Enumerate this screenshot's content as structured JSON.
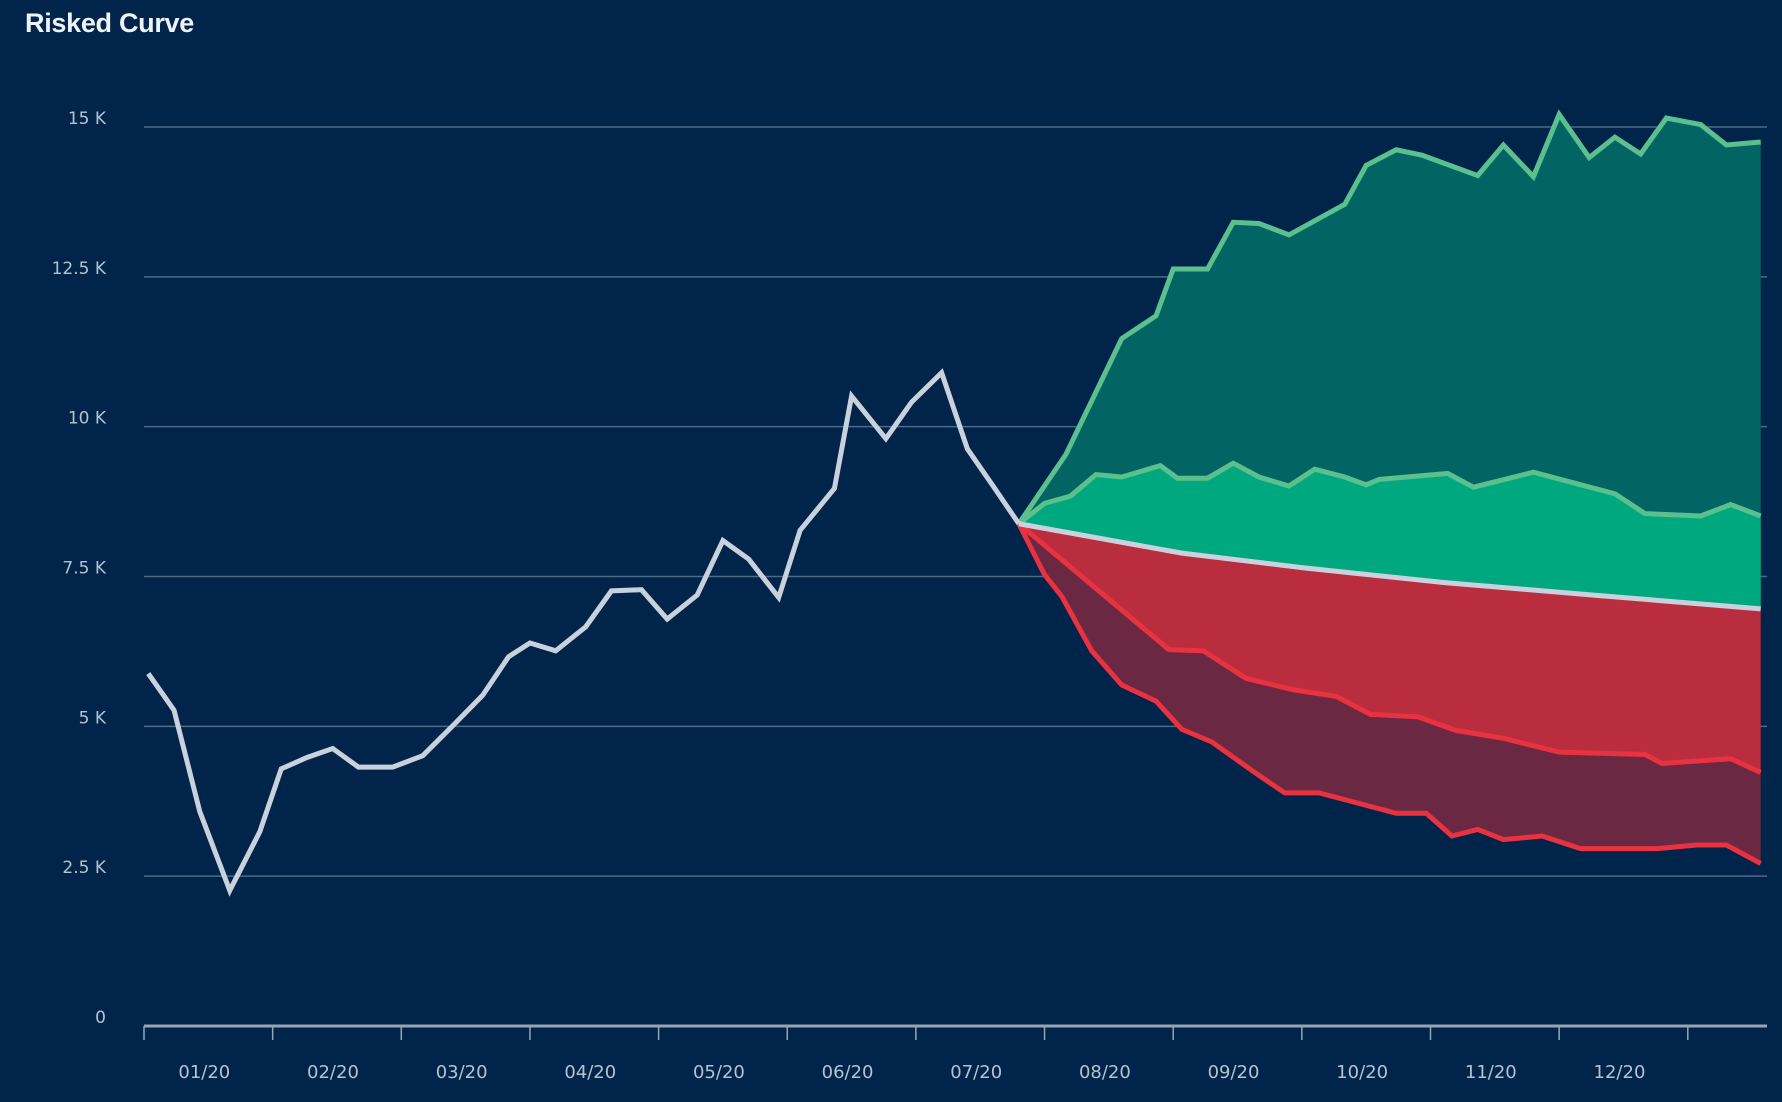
{
  "chart_data": {
    "type": "area",
    "title": "Risked Curve",
    "xlabel": "",
    "ylabel": "",
    "x_tick_labels": [
      "01/20",
      "02/20",
      "03/20",
      "04/20",
      "05/20",
      "06/20",
      "07/20",
      "08/20",
      "09/20",
      "10/20",
      "11/20",
      "12/20"
    ],
    "y_tick_labels": [
      "0",
      "2.5 K",
      "5 K",
      "7.5 K",
      "10 K",
      "12.5 K",
      "15 K"
    ],
    "y_ticks": [
      0,
      2500,
      5000,
      7500,
      10000,
      12500,
      15000
    ],
    "ylim": [
      0,
      15000
    ],
    "xlim": [
      "2020-01-01",
      "2021-01-19"
    ],
    "grid": "horizontal",
    "legend": "none",
    "colors": {
      "background": "#00244a",
      "grid": "#4d6a88",
      "axis": "#9aa5b4",
      "history_line": "#c9d1dc",
      "green_line": "#5cbf8e",
      "red_line": "#e8323f",
      "upper_band_fill": "#026563",
      "mid_band_fill": "#00a880",
      "lower_band_fill": "#b92d3f",
      "lowest_band_fill": "#6a2843"
    },
    "series": [
      {
        "role": "history",
        "points": [
          [
            "2020-01-02",
            5880
          ],
          [
            "2020-01-08",
            5270
          ],
          [
            "2020-01-14",
            3580
          ],
          [
            "2020-01-21",
            2260
          ],
          [
            "2020-01-28",
            3240
          ],
          [
            "2020-02-03",
            4290
          ],
          [
            "2020-02-09",
            4480
          ],
          [
            "2020-02-15",
            4630
          ],
          [
            "2020-02-21",
            4320
          ],
          [
            "2020-02-29",
            4320
          ],
          [
            "2020-03-06",
            4510
          ],
          [
            "2020-03-13",
            5010
          ],
          [
            "2020-03-20",
            5520
          ],
          [
            "2020-03-26",
            6160
          ],
          [
            "2020-03-31",
            6390
          ],
          [
            "2020-04-07",
            6260
          ],
          [
            "2020-04-14",
            6660
          ],
          [
            "2020-04-20",
            7260
          ],
          [
            "2020-04-27",
            7280
          ],
          [
            "2020-05-03",
            6790
          ],
          [
            "2020-05-10",
            7190
          ],
          [
            "2020-05-16",
            8100
          ],
          [
            "2020-05-22",
            7790
          ],
          [
            "2020-05-29",
            7150
          ],
          [
            "2020-06-04",
            8270
          ],
          [
            "2020-06-12",
            8970
          ],
          [
            "2020-06-16",
            10510
          ],
          [
            "2020-06-24",
            9800
          ],
          [
            "2020-06-30",
            10410
          ],
          [
            "2020-07-07",
            10900
          ],
          [
            "2020-07-13",
            9630
          ],
          [
            "2020-07-19",
            9010
          ],
          [
            "2020-07-25",
            8380
          ]
        ]
      },
      {
        "role": "upside_high",
        "points": [
          [
            "2020-07-25",
            8380
          ],
          [
            "2020-08-06",
            9540
          ],
          [
            "2020-08-19",
            11470
          ],
          [
            "2020-08-27",
            11850
          ],
          [
            "2020-09-01",
            12630
          ],
          [
            "2020-09-09",
            12630
          ],
          [
            "2020-09-15",
            13410
          ],
          [
            "2020-09-21",
            13390
          ],
          [
            "2020-09-28",
            13200
          ],
          [
            "2020-10-11",
            13710
          ],
          [
            "2020-10-16",
            14360
          ],
          [
            "2020-10-23",
            14620
          ],
          [
            "2020-10-29",
            14530
          ],
          [
            "2020-11-12",
            14190
          ],
          [
            "2020-11-18",
            14700
          ],
          [
            "2020-11-25",
            14170
          ],
          [
            "2020-12-01",
            15210
          ],
          [
            "2020-12-08",
            14490
          ],
          [
            "2020-12-14",
            14830
          ],
          [
            "2020-12-20",
            14550
          ],
          [
            "2020-12-26",
            15150
          ],
          [
            "2021-01-04",
            15040
          ],
          [
            "2021-01-10",
            14700
          ],
          [
            "2021-01-18",
            14750
          ]
        ]
      },
      {
        "role": "upside_mid",
        "points": [
          [
            "2020-07-25",
            8380
          ],
          [
            "2020-07-31",
            8720
          ],
          [
            "2020-08-07",
            8840
          ],
          [
            "2020-08-13",
            9200
          ],
          [
            "2020-08-19",
            9160
          ],
          [
            "2020-08-28",
            9350
          ],
          [
            "2020-09-02",
            9140
          ],
          [
            "2020-09-09",
            9140
          ],
          [
            "2020-09-15",
            9390
          ],
          [
            "2020-09-21",
            9160
          ],
          [
            "2020-09-28",
            9010
          ],
          [
            "2020-10-04",
            9290
          ],
          [
            "2020-10-11",
            9160
          ],
          [
            "2020-10-16",
            9030
          ],
          [
            "2020-10-19",
            9120
          ],
          [
            "2020-11-05",
            9220
          ],
          [
            "2020-11-11",
            8990
          ],
          [
            "2020-11-25",
            9240
          ],
          [
            "2020-12-14",
            8880
          ],
          [
            "2020-12-21",
            8550
          ],
          [
            "2021-01-04",
            8510
          ],
          [
            "2021-01-11",
            8700
          ],
          [
            "2021-01-18",
            8510
          ]
        ]
      },
      {
        "role": "base",
        "points": [
          [
            "2020-07-25",
            8380
          ],
          [
            "2020-09-03",
            7890
          ],
          [
            "2020-10-02",
            7640
          ],
          [
            "2020-11-04",
            7400
          ],
          [
            "2020-12-09",
            7190
          ],
          [
            "2021-01-18",
            6960
          ]
        ]
      },
      {
        "role": "downside_mid",
        "points": [
          [
            "2020-07-25",
            8380
          ],
          [
            "2020-08-30",
            6280
          ],
          [
            "2020-09-08",
            6260
          ],
          [
            "2020-09-18",
            5800
          ],
          [
            "2020-09-29",
            5610
          ],
          [
            "2020-10-09",
            5500
          ],
          [
            "2020-10-17",
            5200
          ],
          [
            "2020-10-28",
            5160
          ],
          [
            "2020-11-07",
            4930
          ],
          [
            "2020-11-18",
            4800
          ],
          [
            "2020-12-01",
            4570
          ],
          [
            "2020-12-21",
            4530
          ],
          [
            "2020-12-25",
            4380
          ],
          [
            "2021-01-11",
            4460
          ],
          [
            "2021-01-18",
            4230
          ]
        ]
      },
      {
        "role": "downside_low",
        "points": [
          [
            "2020-07-25",
            8380
          ],
          [
            "2020-07-31",
            7530
          ],
          [
            "2020-08-05",
            7170
          ],
          [
            "2020-08-12",
            6260
          ],
          [
            "2020-08-19",
            5690
          ],
          [
            "2020-08-27",
            5420
          ],
          [
            "2020-09-03",
            4950
          ],
          [
            "2020-09-10",
            4740
          ],
          [
            "2020-09-20",
            4230
          ],
          [
            "2020-09-27",
            3890
          ],
          [
            "2020-10-05",
            3890
          ],
          [
            "2020-10-23",
            3550
          ],
          [
            "2020-10-30",
            3550
          ],
          [
            "2020-11-06",
            3170
          ],
          [
            "2020-11-12",
            3280
          ],
          [
            "2020-11-18",
            3110
          ],
          [
            "2020-11-27",
            3170
          ],
          [
            "2020-12-06",
            2960
          ],
          [
            "2020-12-24",
            2960
          ],
          [
            "2021-01-03",
            3020
          ],
          [
            "2021-01-10",
            3020
          ],
          [
            "2021-01-18",
            2710
          ]
        ]
      }
    ]
  }
}
